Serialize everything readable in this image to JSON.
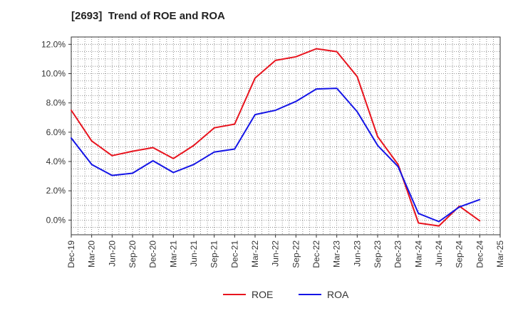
{
  "chart_data": {
    "type": "line",
    "title": "[2693]  Trend of ROE and ROA",
    "xlabel": "",
    "ylabel": "",
    "categories": [
      "Dec-19",
      "Mar-20",
      "Jun-20",
      "Sep-20",
      "Dec-20",
      "Mar-21",
      "Jun-21",
      "Sep-21",
      "Dec-21",
      "Mar-22",
      "Jun-22",
      "Sep-22",
      "Dec-22",
      "Mar-23",
      "Jun-23",
      "Sep-23",
      "Dec-23",
      "Mar-24",
      "Jun-24",
      "Sep-24",
      "Dec-24",
      "Mar-25"
    ],
    "x_tick_labels": [
      "Dec-19",
      "Mar-20",
      "Jun-20",
      "Sep-20",
      "Dec-20",
      "Mar-21",
      "Jun-21",
      "Sep-21",
      "Dec-21",
      "Mar-22",
      "Jun-22",
      "Sep-22",
      "Dec-22",
      "Mar-23",
      "Jun-23",
      "Sep-23",
      "Dec-23",
      "Mar-24",
      "Jun-24",
      "Sep-24",
      "Dec-24",
      "Mar-25"
    ],
    "y_tick_labels": [
      "0.0%",
      "2.0%",
      "4.0%",
      "6.0%",
      "8.0%",
      "10.0%",
      "12.0%"
    ],
    "y_ticks": [
      0,
      2,
      4,
      6,
      8,
      10,
      12
    ],
    "ylim": [
      -1.0,
      12.5
    ],
    "grid": true,
    "legend_position": "bottom-center",
    "series": [
      {
        "name": "ROE",
        "color": "#e8141e",
        "values": [
          7.5,
          5.4,
          4.4,
          4.7,
          4.95,
          4.2,
          5.1,
          6.3,
          6.55,
          9.7,
          10.9,
          11.15,
          11.7,
          11.5,
          9.8,
          5.7,
          3.8,
          -0.2,
          -0.4,
          0.95,
          -0.05,
          null
        ]
      },
      {
        "name": "ROA",
        "color": "#1414e6",
        "values": [
          5.6,
          3.8,
          3.05,
          3.2,
          4.05,
          3.25,
          3.8,
          4.65,
          4.85,
          7.2,
          7.5,
          8.1,
          8.95,
          9.0,
          7.4,
          5.1,
          3.65,
          0.45,
          -0.1,
          0.9,
          1.4,
          null
        ]
      }
    ]
  }
}
